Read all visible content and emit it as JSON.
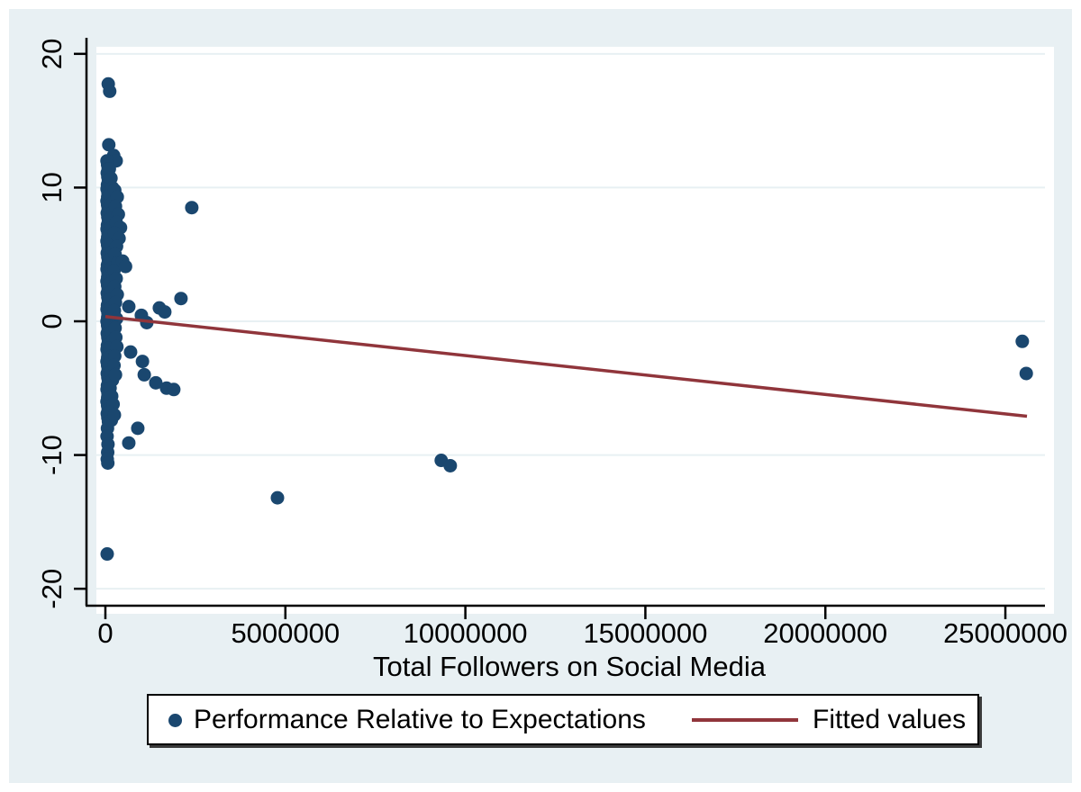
{
  "figure": {
    "background_color": "#e8f0f3",
    "plot_background": "#ffffff",
    "grid_color": "#e8f0f3",
    "axis_color": "#000000",
    "marker_color": "#1a476f",
    "line_color": "#90353b"
  },
  "chart_data": {
    "type": "scatter",
    "title": "",
    "xlabel": "Total Followers on Social Media",
    "ylabel": "",
    "xlim": [
      -500000,
      26100000
    ],
    "ylim": [
      -21.2,
      21.2
    ],
    "x_ticks": [
      0,
      5000000,
      10000000,
      15000000,
      20000000,
      25000000
    ],
    "y_ticks": [
      -20,
      -10,
      0,
      10,
      20
    ],
    "grid": "horizontal",
    "legend_position": "bottom",
    "series": [
      {
        "name": "Performance Relative to Expectations",
        "type": "scatter",
        "color": "#1a476f",
        "points": [
          [
            80000,
            17.75
          ],
          [
            120000,
            17.2
          ],
          [
            95000,
            13.2
          ],
          [
            230000,
            12.4
          ],
          [
            300000,
            12.0
          ],
          [
            45000,
            12.0
          ],
          [
            62000,
            11.7
          ],
          [
            78000,
            11.4
          ],
          [
            52000,
            11.1
          ],
          [
            68000,
            10.8
          ],
          [
            85000,
            10.5
          ],
          [
            58000,
            10.2
          ],
          [
            47000,
            9.9
          ],
          [
            72000,
            9.6
          ],
          [
            64000,
            9.3
          ],
          [
            45000,
            9.0
          ],
          [
            62000,
            8.7
          ],
          [
            78000,
            8.4
          ],
          [
            52000,
            8.1
          ],
          [
            68000,
            7.8
          ],
          [
            85000,
            7.5
          ],
          [
            58000,
            7.2
          ],
          [
            47000,
            6.9
          ],
          [
            72000,
            6.6
          ],
          [
            64000,
            6.3
          ],
          [
            45000,
            6.0
          ],
          [
            62000,
            5.7
          ],
          [
            78000,
            5.4
          ],
          [
            52000,
            5.1
          ],
          [
            68000,
            4.8
          ],
          [
            85000,
            4.5
          ],
          [
            58000,
            4.2
          ],
          [
            47000,
            3.9
          ],
          [
            72000,
            3.6
          ],
          [
            64000,
            3.3
          ],
          [
            45000,
            3.0
          ],
          [
            62000,
            2.7
          ],
          [
            78000,
            2.4
          ],
          [
            52000,
            2.1
          ],
          [
            68000,
            1.8
          ],
          [
            85000,
            1.5
          ],
          [
            58000,
            1.2
          ],
          [
            47000,
            0.9
          ],
          [
            72000,
            0.6
          ],
          [
            64000,
            0.3
          ],
          [
            45000,
            0.0
          ],
          [
            62000,
            -0.3
          ],
          [
            78000,
            -0.6
          ],
          [
            52000,
            -0.9
          ],
          [
            68000,
            -1.2
          ],
          [
            85000,
            -1.5
          ],
          [
            58000,
            -1.8
          ],
          [
            47000,
            -2.1
          ],
          [
            72000,
            -2.4
          ],
          [
            64000,
            -2.7
          ],
          [
            45000,
            -3.0
          ],
          [
            62000,
            -3.3
          ],
          [
            78000,
            -3.6
          ],
          [
            52000,
            -3.9
          ],
          [
            68000,
            -4.2
          ],
          [
            85000,
            -4.5
          ],
          [
            58000,
            -4.8
          ],
          [
            47000,
            -5.1
          ],
          [
            72000,
            -5.4
          ],
          [
            64000,
            -5.7
          ],
          [
            45000,
            -6.0
          ],
          [
            62000,
            -6.3
          ],
          [
            78000,
            -6.6
          ],
          [
            52000,
            -6.9
          ],
          [
            68000,
            -7.2
          ],
          [
            85000,
            -7.5
          ],
          [
            58000,
            -8.0
          ],
          [
            47000,
            -8.6
          ],
          [
            72000,
            -9.2
          ],
          [
            64000,
            -9.8
          ],
          [
            52000,
            -10.3
          ],
          [
            68000,
            -10.6
          ],
          [
            110000,
            11.4
          ],
          [
            155000,
            10.7
          ],
          [
            195000,
            10.0
          ],
          [
            130000,
            9.4
          ],
          [
            175000,
            8.8
          ],
          [
            215000,
            8.2
          ],
          [
            120000,
            7.6
          ],
          [
            165000,
            7.0
          ],
          [
            110000,
            6.4
          ],
          [
            155000,
            5.8
          ],
          [
            195000,
            5.2
          ],
          [
            130000,
            4.6
          ],
          [
            175000,
            4.0
          ],
          [
            215000,
            3.4
          ],
          [
            120000,
            2.8
          ],
          [
            165000,
            2.2
          ],
          [
            110000,
            1.6
          ],
          [
            155000,
            1.0
          ],
          [
            195000,
            0.4
          ],
          [
            130000,
            -0.2
          ],
          [
            175000,
            -0.8
          ],
          [
            215000,
            -1.4
          ],
          [
            120000,
            -2.0
          ],
          [
            165000,
            -2.6
          ],
          [
            110000,
            -3.2
          ],
          [
            155000,
            -3.8
          ],
          [
            195000,
            -4.4
          ],
          [
            130000,
            -5.0
          ],
          [
            175000,
            -5.6
          ],
          [
            215000,
            -6.2
          ],
          [
            120000,
            -6.8
          ],
          [
            165000,
            -7.4
          ],
          [
            260000,
            9.8
          ],
          [
            330000,
            9.3
          ],
          [
            280000,
            8.6
          ],
          [
            360000,
            8.0
          ],
          [
            300000,
            7.4
          ],
          [
            420000,
            7.0
          ],
          [
            250000,
            6.6
          ],
          [
            380000,
            6.2
          ],
          [
            310000,
            5.6
          ],
          [
            270000,
            5.0
          ],
          [
            350000,
            4.4
          ],
          [
            240000,
            3.8
          ],
          [
            300000,
            3.2
          ],
          [
            260000,
            2.6
          ],
          [
            330000,
            2.0
          ],
          [
            280000,
            1.4
          ],
          [
            250000,
            0.8
          ],
          [
            310000,
            0.2
          ],
          [
            270000,
            -0.5
          ],
          [
            290000,
            -1.2
          ],
          [
            320000,
            -1.9
          ],
          [
            260000,
            -2.6
          ],
          [
            240000,
            -3.3
          ],
          [
            280000,
            -4.0
          ],
          [
            250000,
            -7.0
          ],
          [
            480000,
            4.5
          ],
          [
            560000,
            4.1
          ],
          [
            650000,
            1.1
          ],
          [
            1000000,
            0.45
          ],
          [
            1150000,
            -0.1
          ],
          [
            1500000,
            1.0
          ],
          [
            1650000,
            0.7
          ],
          [
            2100000,
            1.7
          ],
          [
            2400000,
            8.5
          ],
          [
            700000,
            -2.3
          ],
          [
            1030000,
            -3.0
          ],
          [
            1080000,
            -4.0
          ],
          [
            1400000,
            -4.6
          ],
          [
            1700000,
            -5.0
          ],
          [
            1900000,
            -5.1
          ],
          [
            900000,
            -8.0
          ],
          [
            650000,
            -9.1
          ],
          [
            50000,
            -17.4
          ],
          [
            4780000,
            -13.2
          ],
          [
            9330000,
            -10.4
          ],
          [
            9580000,
            -10.8
          ],
          [
            25470000,
            -1.5
          ],
          [
            25580000,
            -3.9
          ]
        ]
      },
      {
        "name": "Fitted values",
        "type": "line",
        "color": "#90353b",
        "points": [
          [
            0,
            0.35
          ],
          [
            25600000,
            -7.1
          ]
        ]
      }
    ]
  },
  "legend": {
    "marker_color": "#1a476f",
    "line_color": "#90353b"
  }
}
